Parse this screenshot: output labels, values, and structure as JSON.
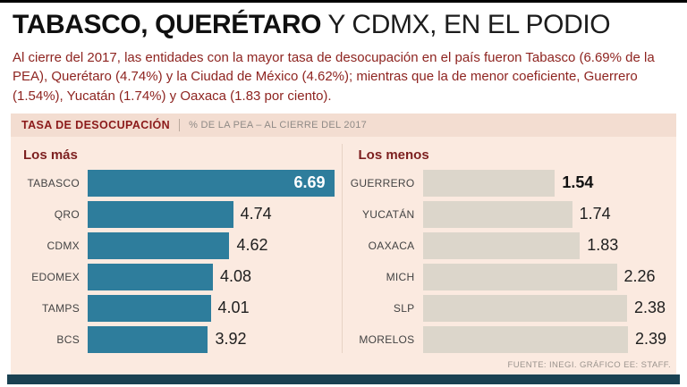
{
  "header": {
    "title_bold": "TABASCO, QUERÉTARO",
    "title_regular": " Y CDMX, EN EL PODIO",
    "intro": "Al cierre del 2017, las entidades con la mayor tasa de desocupación en el país fueron Tabasco (6.69% de la PEA), Querétaro (4.74%) y la Ciudad de México (4.62%); mientras que la de menor coeficiente, Guerrero (1.54%), Yucatán (1.74%) y Oaxaca (1.83 por ciento)."
  },
  "section_bar": {
    "title": "TASA DE DESOCUPACIÓN",
    "subtitle": "% DE LA PEA – AL CIERRE DEL 2017"
  },
  "chart_data": [
    {
      "type": "bar",
      "orientation": "horizontal",
      "title": "Los más",
      "categories": [
        "TABASCO",
        "QRO",
        "CDMX",
        "EDOMEX",
        "TAMPS",
        "BCS"
      ],
      "values": [
        6.69,
        4.74,
        4.62,
        4.08,
        4.01,
        3.92
      ],
      "max": 6.69,
      "bar_color": "#2e7d9c",
      "value_inside_first": true,
      "first_value_bold": false,
      "legend": "none",
      "grid": false
    },
    {
      "type": "bar",
      "orientation": "horizontal",
      "title": "Los menos",
      "categories": [
        "GUERRERO",
        "YUCATÁN",
        "OAXACA",
        "MICH",
        "SLP",
        "MORELOS"
      ],
      "values": [
        1.54,
        1.74,
        1.83,
        2.26,
        2.38,
        2.39
      ],
      "max": 2.39,
      "bar_color": "#dcd6cb",
      "value_inside_first": false,
      "first_value_bold": true,
      "legend": "none",
      "grid": false
    }
  ],
  "footer": {
    "source": "FUENTE: INEGI. GRÁFICO EE: STAFF."
  },
  "colors": {
    "accent_red": "#8e2420",
    "teal_bar": "#2e7d9c",
    "gray_bar": "#dcd6cb",
    "panel_bg": "#fbeae0",
    "section_bar_bg": "#f3ddd1",
    "bottom_bar": "#1a4152"
  }
}
